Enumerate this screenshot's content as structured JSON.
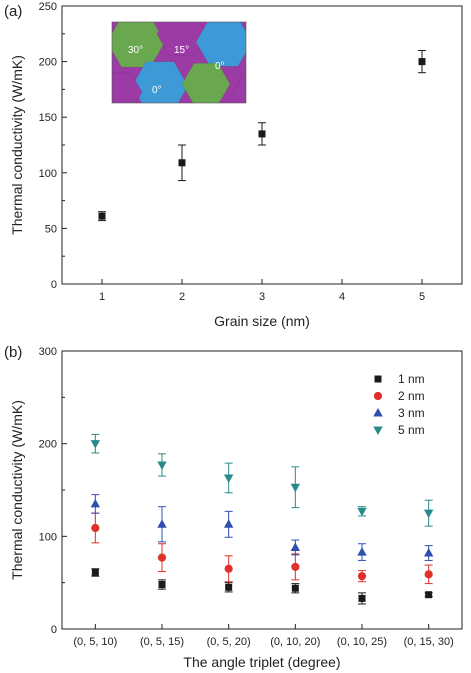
{
  "chart_data": [
    {
      "type": "scatter",
      "panel_label": "(a)",
      "xlabel": "Grain size (nm)",
      "ylabel": "Thermal conductivity (W/mK)",
      "xlim": [
        0.5,
        5.5
      ],
      "ylim": [
        0,
        250
      ],
      "xticks": [
        1,
        2,
        3,
        4,
        5
      ],
      "yticks": [
        0,
        50,
        100,
        150,
        200,
        250
      ],
      "points": [
        {
          "x": 1,
          "y": 61,
          "err": 4
        },
        {
          "x": 2,
          "y": 109,
          "err": 16
        },
        {
          "x": 3,
          "y": 135,
          "err": 10
        },
        {
          "x": 5,
          "y": 200,
          "err": 10
        }
      ],
      "inset": {
        "labels": [
          "30°",
          "15°",
          "0°",
          "0°"
        ],
        "colors": {
          "green": "#6aa84f",
          "magenta": "#9c3ba5",
          "blue": "#3d9ad6"
        }
      }
    },
    {
      "type": "scatter",
      "panel_label": "(b)",
      "xlabel": "The angle triplet (degree)",
      "ylabel": "Thermal conductivity (W/mK)",
      "ylim": [
        0,
        300
      ],
      "yticks": [
        0,
        100,
        200,
        300
      ],
      "categories": [
        "(0, 5, 10)",
        "(0, 5, 15)",
        "(0, 5, 20)",
        "(0, 10, 20)",
        "(0, 10, 25)",
        "(0, 15, 30)"
      ],
      "legend_position": "top-right",
      "series": [
        {
          "name": "1 nm",
          "marker": "square",
          "color": "#1a1a1a",
          "values": [
            61,
            48,
            45,
            44,
            33,
            37
          ],
          "errors": [
            4,
            5,
            5,
            5,
            6,
            2
          ]
        },
        {
          "name": "2 nm",
          "marker": "circle",
          "color": "#e0302a",
          "values": [
            109,
            77,
            65,
            67,
            57,
            59
          ],
          "errors": [
            16,
            15,
            14,
            14,
            6,
            10
          ]
        },
        {
          "name": "3 nm",
          "marker": "triangle-up",
          "color": "#2f4fb0",
          "values": [
            135,
            113,
            113,
            88,
            83,
            82
          ],
          "errors": [
            10,
            19,
            14,
            8,
            9,
            8
          ]
        },
        {
          "name": "5 nm",
          "marker": "triangle-down",
          "color": "#2a8a8a",
          "values": [
            200,
            177,
            163,
            153,
            127,
            125
          ],
          "errors": [
            10,
            12,
            16,
            22,
            5,
            14
          ]
        }
      ]
    }
  ]
}
